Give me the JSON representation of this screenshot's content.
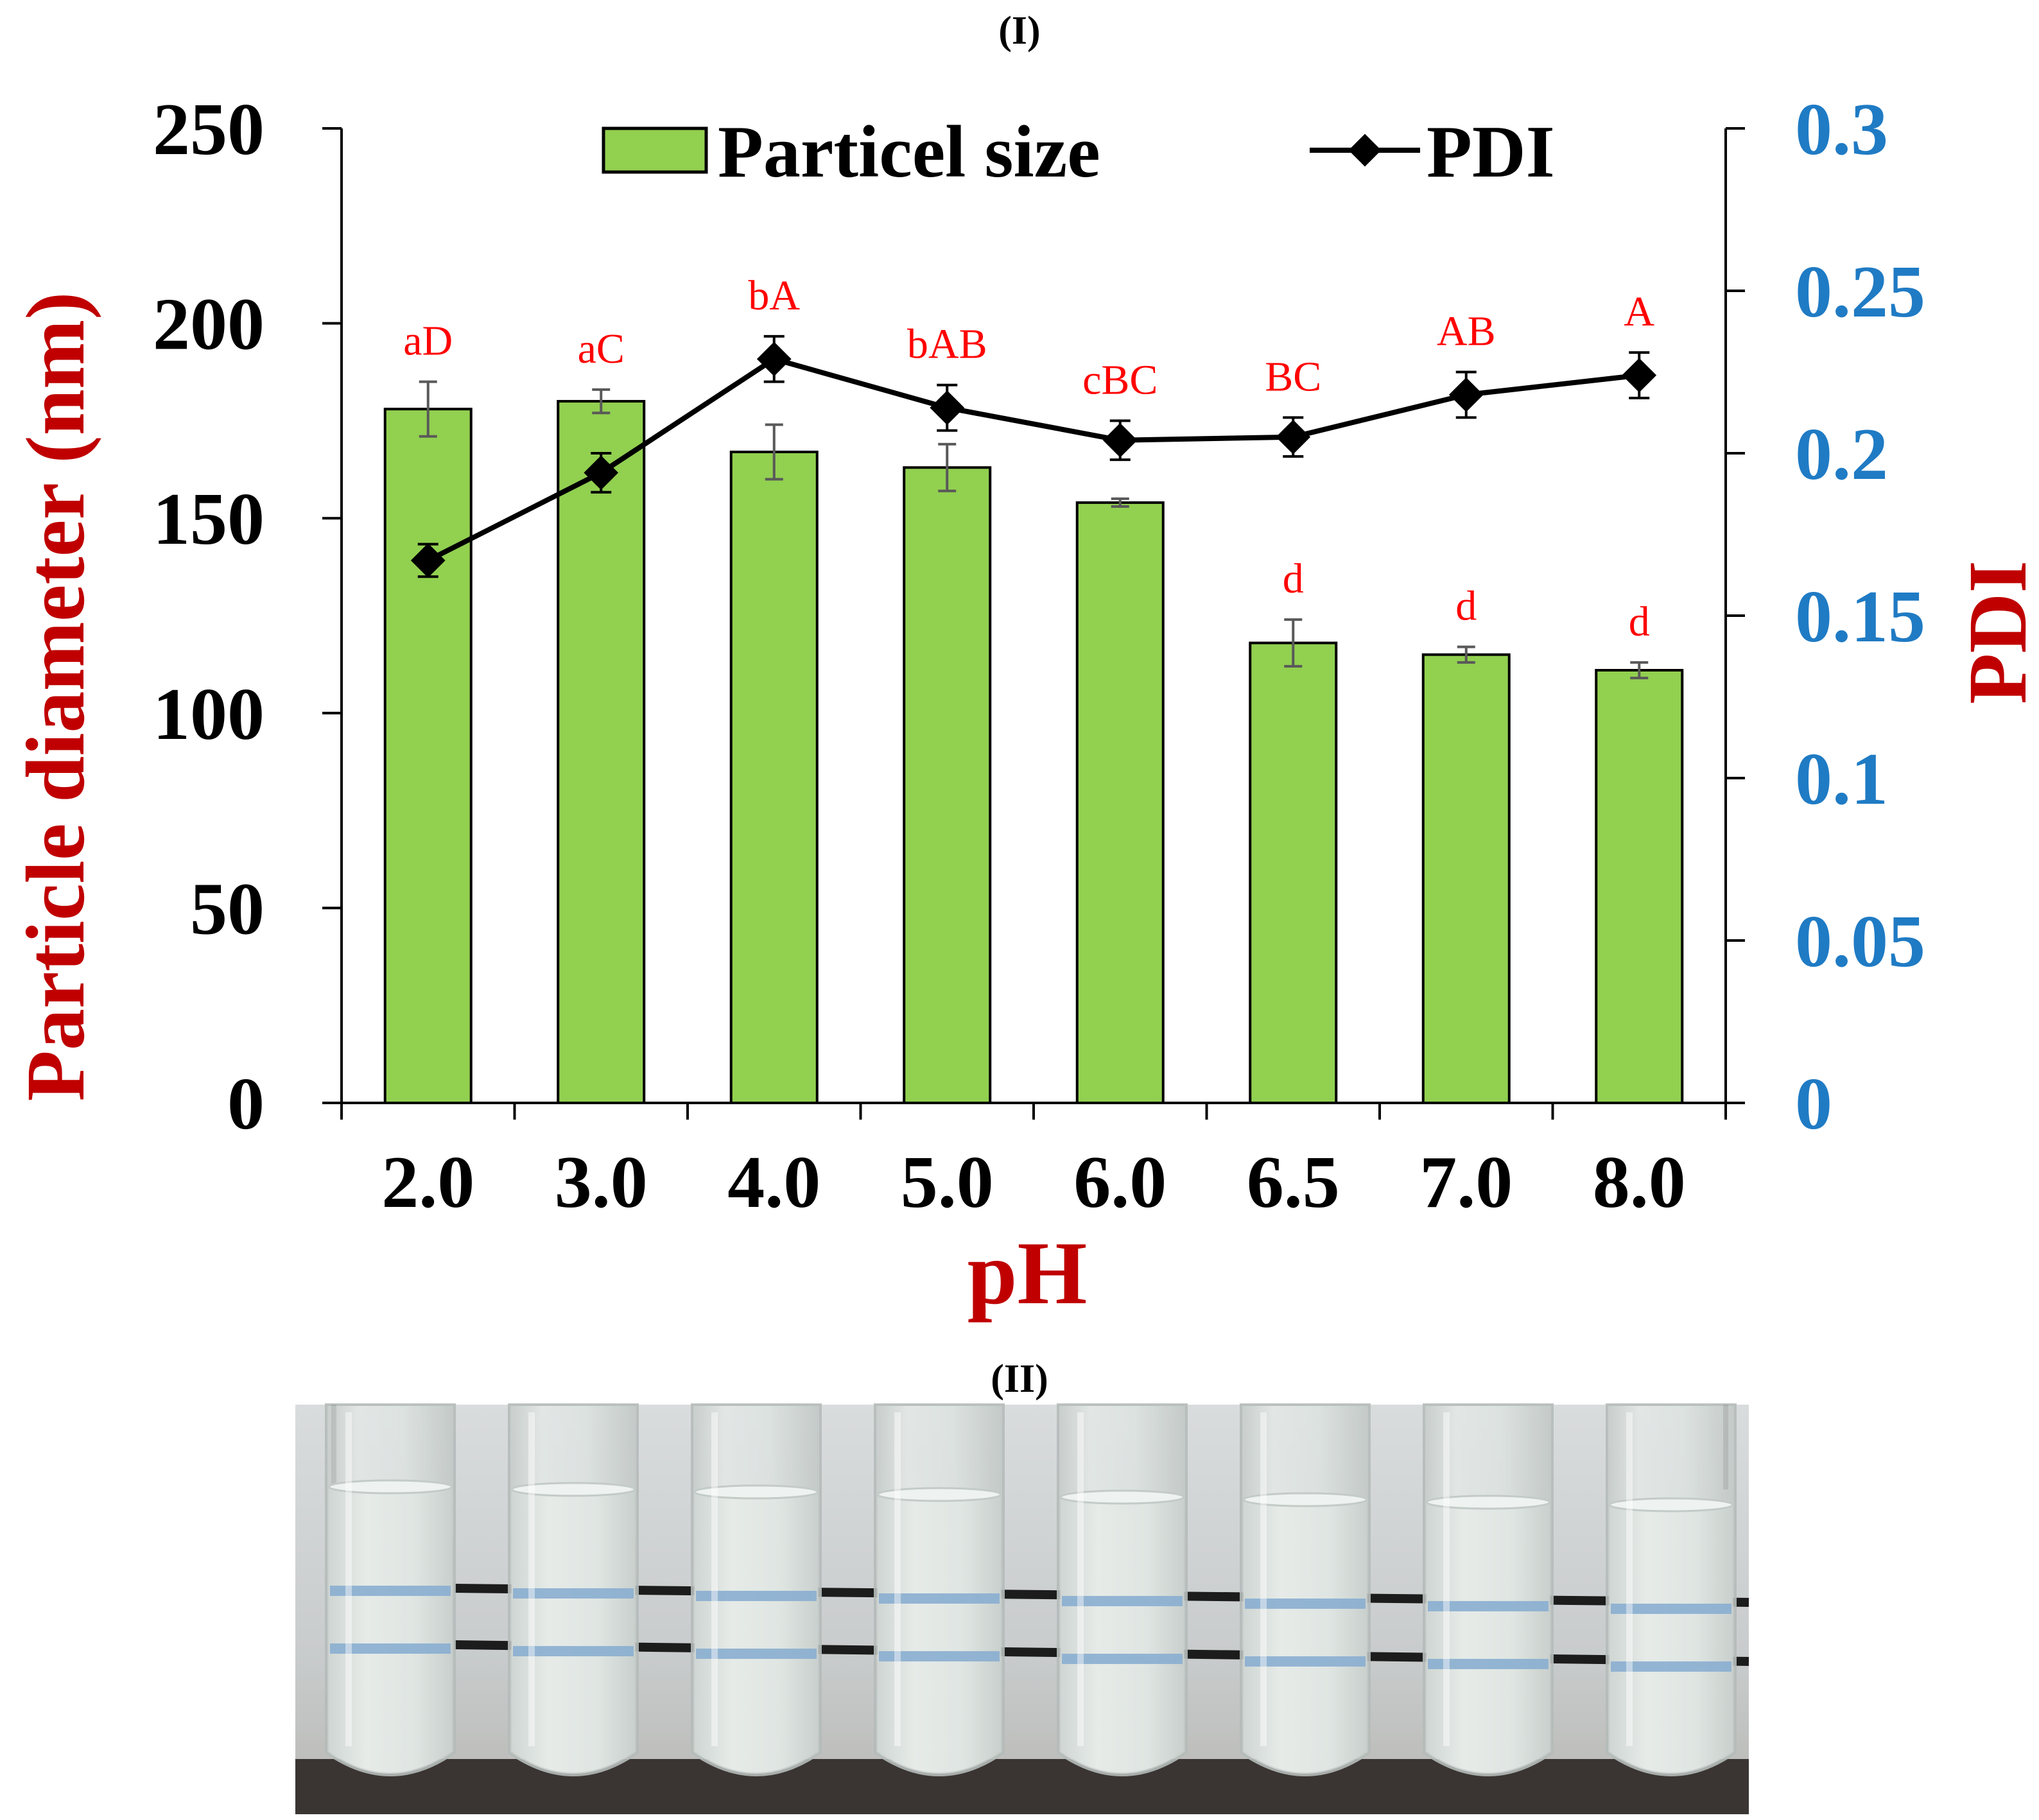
{
  "figure": {
    "panel_top_label": "(I)",
    "panel_bottom_label": "(II)"
  },
  "chart_data": {
    "type": "bar+line",
    "title": "",
    "xlabel": "pH",
    "ylabel": "Particle diameter (nm)",
    "y2label": "PDI",
    "categories": [
      "2.0",
      "3.0",
      "4.0",
      "5.0",
      "6.0",
      "6.5",
      "7.0",
      "8.0"
    ],
    "ylim": [
      0,
      250
    ],
    "y2lim": [
      0,
      0.3
    ],
    "yticks": [
      "0",
      "50",
      "100",
      "150",
      "200",
      "250"
    ],
    "y2ticks": [
      "0",
      "0.05",
      "0.1",
      "0.15",
      "0.2",
      "0.25",
      "0.3"
    ],
    "legend": {
      "placement": "top",
      "bar_label": "Particel size",
      "line_label": "PDI"
    },
    "series": [
      {
        "name": "Particel size",
        "kind": "bar",
        "axis": "left",
        "values": [
          178,
          180,
          167,
          163,
          154,
          118,
          115,
          111
        ],
        "errors": [
          7,
          3,
          7,
          6,
          1,
          6,
          2,
          2
        ]
      },
      {
        "name": "PDI",
        "kind": "line",
        "axis": "right",
        "values": [
          0.167,
          0.194,
          0.229,
          0.214,
          0.204,
          0.205,
          0.218,
          0.224
        ],
        "errors": [
          0.005,
          0.006,
          0.007,
          0.007,
          0.006,
          0.006,
          0.007,
          0.007
        ]
      }
    ],
    "annotations": [
      {
        "category": "2.0",
        "text": "aD",
        "anchor": "bar"
      },
      {
        "category": "3.0",
        "text": "aC",
        "anchor": "bar"
      },
      {
        "category": "4.0",
        "text": "bA",
        "anchor": "line"
      },
      {
        "category": "5.0",
        "text": "bAB",
        "anchor": "line"
      },
      {
        "category": "6.0",
        "text": "cBC",
        "anchor": "line"
      },
      {
        "category": "6.5",
        "text": "BC",
        "anchor": "line"
      },
      {
        "category": "7.0",
        "text": "AB",
        "anchor": "line"
      },
      {
        "category": "8.0",
        "text": "A",
        "anchor": "line"
      },
      {
        "category": "6.5",
        "text": "d",
        "anchor": "bar"
      },
      {
        "category": "7.0",
        "text": "d",
        "anchor": "bar"
      },
      {
        "category": "8.0",
        "text": "d",
        "anchor": "bar"
      }
    ],
    "colors": {
      "bar_fill": "#92d050",
      "bar_stroke": "#000000",
      "line": "#000000",
      "error_bar_bar": "#595959",
      "left_title": "#c00000",
      "right_ticks": "#1f7bc4",
      "annotation": "#ff0000"
    }
  },
  "photo": {
    "description_icon": "test-tubes-photo",
    "tube_count": 8,
    "colors": {
      "background": "#ccd0d2",
      "liquid": "#d6ddda",
      "liquid_band": "#8aaed0",
      "base": "#3a3532",
      "line": "#1c1c1c"
    }
  }
}
